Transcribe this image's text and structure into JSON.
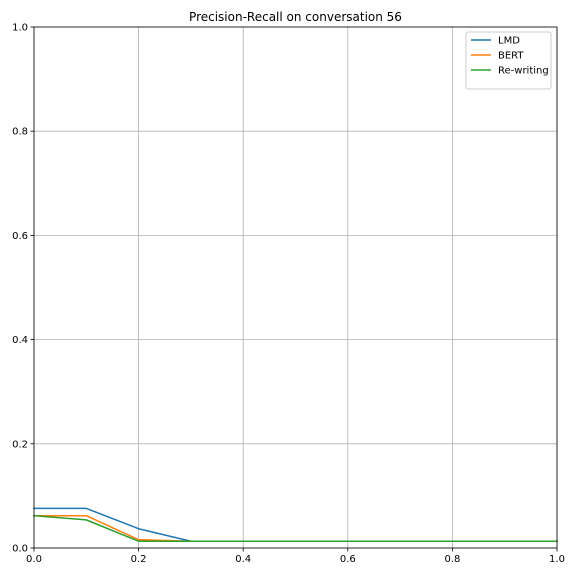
{
  "chart_data": {
    "type": "line",
    "title": "Precision-Recall on conversation 56",
    "xlabel": "",
    "ylabel": "",
    "xlim": [
      0.0,
      1.0
    ],
    "ylim": [
      0.0,
      1.0
    ],
    "grid": true,
    "legend_position": "top-right",
    "x_ticks": [
      {
        "value": 0.0,
        "label": "0.0"
      },
      {
        "value": 0.2,
        "label": "0.2"
      },
      {
        "value": 0.4,
        "label": "0.4"
      },
      {
        "value": 0.6,
        "label": "0.6"
      },
      {
        "value": 0.8,
        "label": "0.8"
      },
      {
        "value": 1.0,
        "label": "1.0"
      }
    ],
    "y_ticks": [
      {
        "value": 0.0,
        "label": "0.0"
      },
      {
        "value": 0.2,
        "label": "0.2"
      },
      {
        "value": 0.4,
        "label": "0.4"
      },
      {
        "value": 0.6,
        "label": "0.6"
      },
      {
        "value": 0.8,
        "label": "0.8"
      },
      {
        "value": 1.0,
        "label": "1.0"
      }
    ],
    "x": [
      0.0,
      0.1,
      0.2,
      0.3,
      0.4,
      0.5,
      0.6,
      0.7,
      0.8,
      0.9,
      1.0
    ],
    "series": [
      {
        "name": "LMD",
        "color": "#1f77b4",
        "values": [
          0.076,
          0.076,
          0.037,
          0.013,
          0.013,
          0.013,
          0.013,
          0.013,
          0.013,
          0.013,
          0.013
        ]
      },
      {
        "name": "BERT",
        "color": "#ff7f0e",
        "values": [
          0.062,
          0.062,
          0.016,
          0.013,
          0.013,
          0.013,
          0.013,
          0.013,
          0.013,
          0.013,
          0.013
        ]
      },
      {
        "name": "Re-writing",
        "color": "#2ca02c",
        "values": [
          0.062,
          0.054,
          0.013,
          0.013,
          0.013,
          0.013,
          0.013,
          0.013,
          0.013,
          0.013,
          0.013
        ]
      }
    ]
  }
}
